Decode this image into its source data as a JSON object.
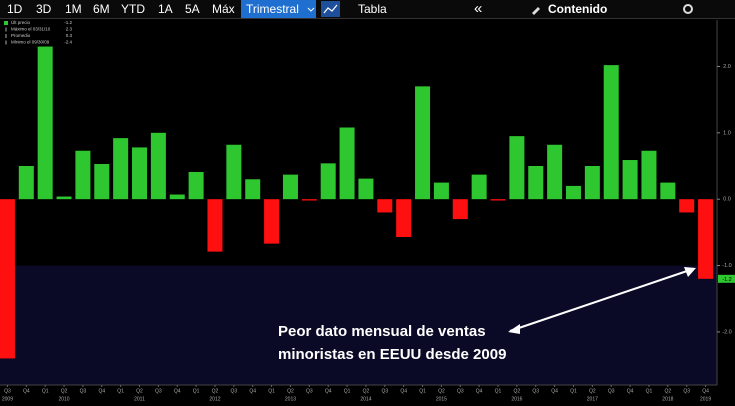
{
  "toolbar": {
    "ranges": [
      "1D",
      "3D",
      "1M",
      "6M",
      "YTD",
      "1A",
      "5A",
      "Máx"
    ],
    "period": "Trimestral",
    "view": "Tabla",
    "collapse": "«",
    "contents": "Contenido"
  },
  "chart_data": {
    "type": "bar",
    "categories": [
      "Q3",
      "Q4",
      "Q1",
      "Q2",
      "Q3",
      "Q4",
      "Q1",
      "Q2",
      "Q3",
      "Q4",
      "Q1",
      "Q2",
      "Q3",
      "Q4",
      "Q1",
      "Q2",
      "Q3",
      "Q4",
      "Q1",
      "Q2",
      "Q3",
      "Q4",
      "Q1",
      "Q2",
      "Q3",
      "Q4",
      "Q1",
      "Q2",
      "Q3",
      "Q4",
      "Q1",
      "Q2",
      "Q3",
      "Q4",
      "Q1",
      "Q2",
      "Q3",
      "Q4"
    ],
    "year_labels": [
      "2009",
      null,
      null,
      "2010",
      null,
      null,
      null,
      "2011",
      null,
      null,
      null,
      "2012",
      null,
      null,
      null,
      "2013",
      null,
      null,
      null,
      "2014",
      null,
      null,
      null,
      "2015",
      null,
      null,
      null,
      "2016",
      null,
      null,
      null,
      "2017",
      null,
      null,
      null,
      "2018",
      null,
      "2019"
    ],
    "values": [
      -2.4,
      0.5,
      2.3,
      0.04,
      0.73,
      0.53,
      0.92,
      0.78,
      1.0,
      0.07,
      0.41,
      -0.79,
      0.82,
      0.3,
      -0.67,
      0.37,
      -0.02,
      0.54,
      1.08,
      0.31,
      -0.2,
      -0.57,
      1.7,
      0.25,
      -0.3,
      0.37,
      -0.02,
      0.95,
      0.5,
      0.82,
      0.2,
      0.5,
      2.02,
      0.59,
      0.73,
      0.25,
      -0.2,
      -1.2
    ],
    "value_labels": [
      null,
      null,
      null,
      null,
      null,
      null,
      null,
      null,
      null,
      null,
      null,
      null,
      null,
      null,
      null,
      null,
      null,
      null,
      null,
      null,
      null,
      null,
      null,
      null,
      null,
      null,
      null,
      null,
      null,
      null,
      null,
      null,
      null,
      null,
      null,
      null,
      null,
      "-1.2"
    ],
    "colors": {
      "positive": "#2fc72f",
      "negative": "#ff1010"
    },
    "ylim": [
      -2.8,
      2.7
    ],
    "yticks": [
      {
        "value": -2,
        "label": "-2.0"
      },
      {
        "value": -1,
        "label": "-1.0"
      },
      {
        "value": 0,
        "label": "0.0"
      },
      {
        "value": 1,
        "label": "1.0"
      },
      {
        "value": 2,
        "label": "2.0"
      }
    ],
    "shade_below": -1,
    "stats": [
      {
        "label": "Últ precio",
        "value": -1.2
      },
      {
        "label": "Máximo el 03/31/10",
        "value": 2.3
      },
      {
        "label": "Promedio",
        "value": 0.3
      },
      {
        "label": "Mínimo el 09/30/09",
        "value": -2.4
      }
    ],
    "annotation": [
      "Peor dato mensual de ventas",
      "minoristas en EEUU desde 2009"
    ]
  }
}
